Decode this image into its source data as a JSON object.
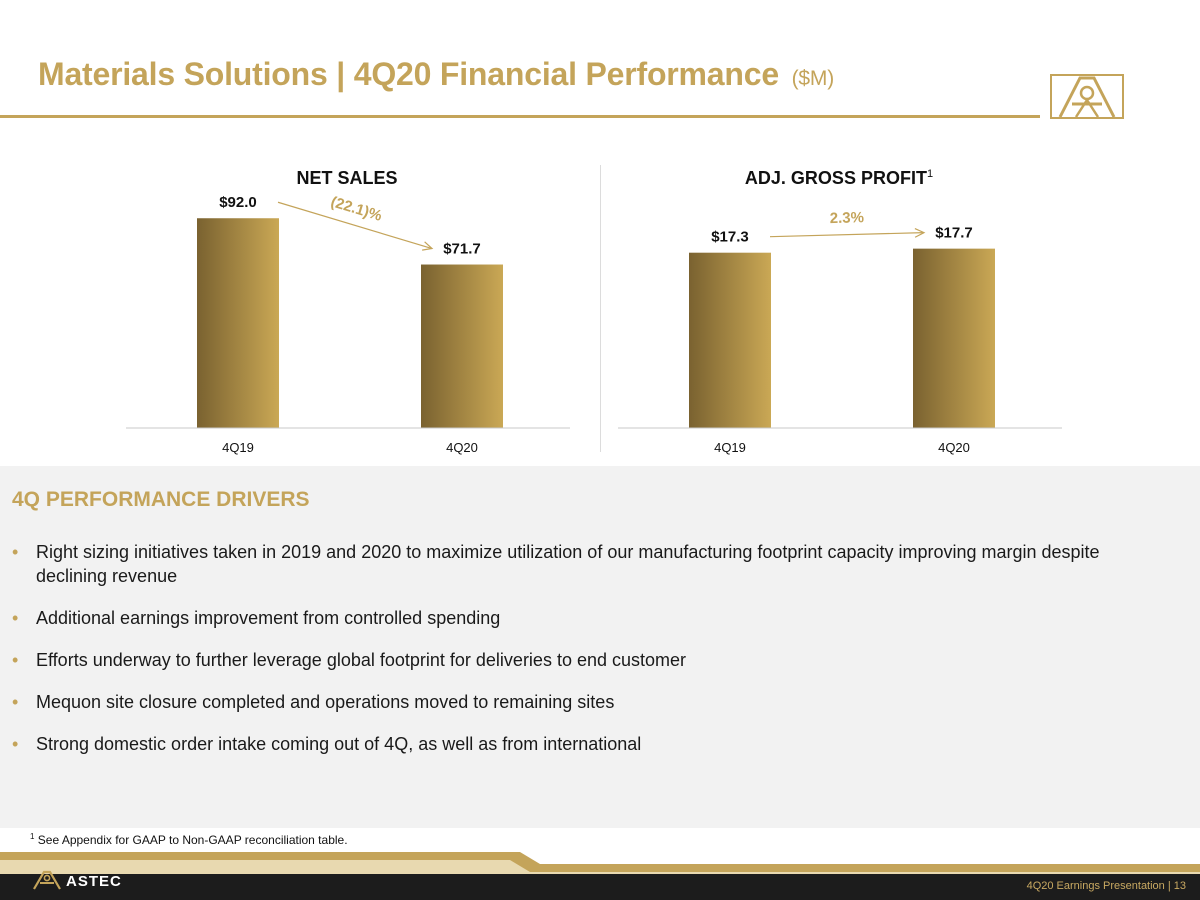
{
  "header": {
    "title": "Materials Solutions | 4Q20 Financial Performance",
    "unit": "($M)"
  },
  "colors": {
    "gold": "#c4a45a",
    "gold_dark": "#7a6230",
    "gold_light": "#caa855",
    "footer_dark": "#1c1c1c"
  },
  "chart_data": [
    {
      "type": "bar",
      "title": "NET SALES",
      "title_sup": "",
      "categories": [
        "4Q19",
        "4Q20"
      ],
      "values": [
        92.0,
        71.7
      ],
      "value_labels": [
        "$92.0",
        "$71.7"
      ],
      "change_label": "(22.1)%",
      "ylim": [
        0,
        100
      ],
      "xlabel": "",
      "ylabel": ""
    },
    {
      "type": "bar",
      "title": "ADJ. GROSS PROFIT",
      "title_sup": "1",
      "categories": [
        "4Q19",
        "4Q20"
      ],
      "values": [
        17.3,
        17.7
      ],
      "value_labels": [
        "$17.3",
        "$17.7"
      ],
      "change_label": "2.3%",
      "ylim": [
        0,
        22.5
      ],
      "xlabel": "",
      "ylabel": ""
    }
  ],
  "drivers": {
    "heading": "4Q PERFORMANCE DRIVERS",
    "items": [
      "Right sizing initiatives taken in 2019 and 2020 to maximize utilization of our manufacturing footprint capacity improving margin despite declining revenue",
      "Additional earnings improvement from controlled spending",
      "Efforts underway to further leverage global footprint for deliveries to end customer",
      "Mequon site closure completed and operations moved to remaining sites",
      "Strong domestic order intake coming out of 4Q, as well as from international"
    ]
  },
  "footnote": {
    "marker": "1",
    "text": "See Appendix for GAAP to Non-GAAP reconciliation table."
  },
  "footer": {
    "brand": "ASTEC",
    "text": "4Q20 Earnings Presentation |  13",
    "logo_icon": "astec-a-logo-icon"
  }
}
